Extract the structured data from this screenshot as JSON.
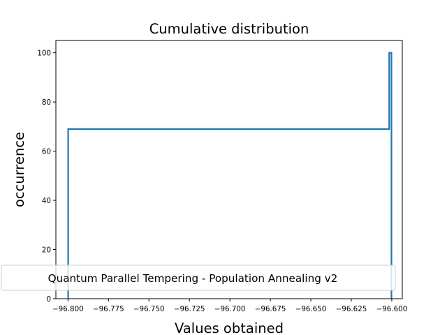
{
  "chart_data": {
    "type": "line",
    "step": true,
    "title": "Cumulative distribution",
    "xlabel": "Values obtained",
    "ylabel": "occurrence",
    "xlim": [
      -96.8075,
      -96.5935
    ],
    "ylim": [
      0,
      105
    ],
    "grid": false,
    "legend": {
      "placement": "lower-center"
    },
    "xticks": [
      {
        "value": -96.8,
        "label": "−96.800"
      },
      {
        "value": -96.775,
        "label": "−96.775"
      },
      {
        "value": -96.75,
        "label": "−96.750"
      },
      {
        "value": -96.725,
        "label": "−96.725"
      },
      {
        "value": -96.7,
        "label": "−96.700"
      },
      {
        "value": -96.675,
        "label": "−96.675"
      },
      {
        "value": -96.65,
        "label": "−96.650"
      },
      {
        "value": -96.625,
        "label": "−96.625"
      },
      {
        "value": -96.6,
        "label": "−96.600"
      }
    ],
    "yticks": [
      {
        "value": 0,
        "label": "0"
      },
      {
        "value": 20,
        "label": "20"
      },
      {
        "value": 40,
        "label": "40"
      },
      {
        "value": 60,
        "label": "60"
      },
      {
        "value": 80,
        "label": "80"
      },
      {
        "value": 100,
        "label": "100"
      }
    ],
    "series": [
      {
        "name": "Quantum Parallel Tempering - Population Annealing v2",
        "color": "#1f77b4",
        "x": [
          -96.7999,
          -96.7999,
          -96.6016,
          -96.6016,
          -96.6002,
          -96.6002
        ],
        "y": [
          0,
          69,
          69,
          100,
          100,
          0
        ]
      }
    ]
  }
}
